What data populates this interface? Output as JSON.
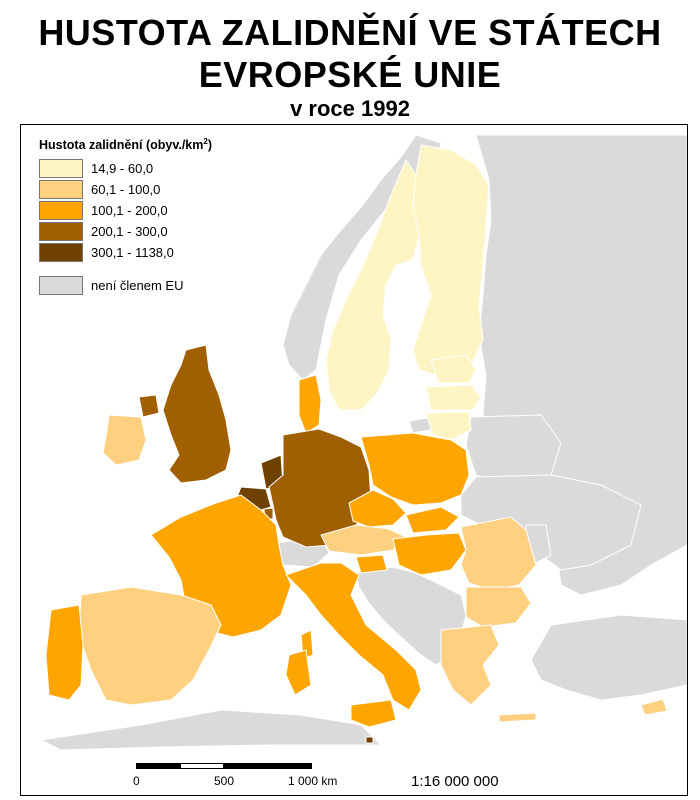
{
  "title": {
    "line1": "HUSTOTA ZALIDNĚNÍ VE STÁTECH",
    "line2": "EVROPSKÉ UNIE",
    "line3": "v roce 1992"
  },
  "legend": {
    "title_text": "Hustota zalidnění (obyv./km",
    "title_sup": "2",
    "title_close": ")",
    "classes": [
      {
        "label": "14,9 - 60,0",
        "color": "#FFF5C4"
      },
      {
        "label": "60,1 - 100,0",
        "color": "#FFD080"
      },
      {
        "label": "100,1 - 200,0",
        "color": "#FFA500"
      },
      {
        "label": "200,1 - 300,0",
        "color": "#A05F00"
      },
      {
        "label": "300,1 - 1138,0",
        "color": "#6E4100"
      }
    ],
    "nonmember": {
      "label": "není členem EU",
      "color": "#DADADA"
    }
  },
  "scale_bar": {
    "labels": [
      "0",
      "500",
      "1 000 km"
    ]
  },
  "ratio": "1:16 000 000",
  "countries": [
    {
      "id": "finland",
      "class": 0
    },
    {
      "id": "sweden",
      "class": 0
    },
    {
      "id": "estonia",
      "class": 0
    },
    {
      "id": "latvia",
      "class": 0
    },
    {
      "id": "lithuania",
      "class": 0
    },
    {
      "id": "ireland",
      "class": 1
    },
    {
      "id": "spain",
      "class": 1
    },
    {
      "id": "austria",
      "class": 1
    },
    {
      "id": "hungary",
      "class": 1
    },
    {
      "id": "romania",
      "class": 1
    },
    {
      "id": "bulgaria",
      "class": 1
    },
    {
      "id": "greece",
      "class": 1
    },
    {
      "id": "cyprus",
      "class": 1
    },
    {
      "id": "france",
      "class": 2
    },
    {
      "id": "portugal",
      "class": 2
    },
    {
      "id": "italy",
      "class": 2
    },
    {
      "id": "poland",
      "class": 2
    },
    {
      "id": "czechia",
      "class": 2
    },
    {
      "id": "slovakia",
      "class": 2
    },
    {
      "id": "slovenia",
      "class": 2
    },
    {
      "id": "denmark",
      "class": 2
    },
    {
      "id": "united-kingdom",
      "class": 3
    },
    {
      "id": "germany",
      "class": 3
    },
    {
      "id": "luxembourg",
      "class": 3
    },
    {
      "id": "netherlands",
      "class": 4
    },
    {
      "id": "belgium",
      "class": 4
    },
    {
      "id": "malta",
      "class": 4
    }
  ]
}
